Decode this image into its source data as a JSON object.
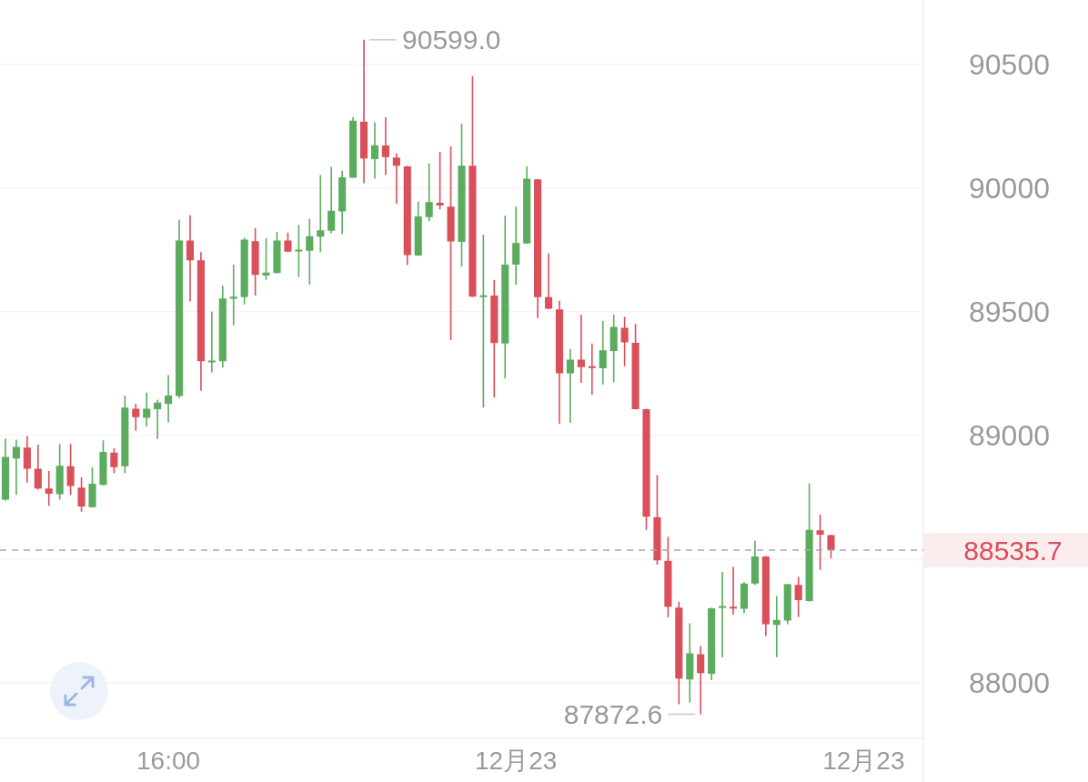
{
  "chart_data": {
    "type": "candlestick",
    "categories": [
      null,
      null,
      null,
      null,
      null,
      null,
      null,
      null,
      null,
      null,
      null,
      null,
      null,
      null,
      null,
      "16:00",
      null,
      null,
      null,
      null,
      null,
      null,
      null,
      null,
      null,
      null,
      null,
      null,
      null,
      null,
      null,
      null,
      null,
      null,
      null,
      null,
      null,
      null,
      null,
      null,
      null,
      null,
      null,
      null,
      null,
      null,
      null,
      "12月23",
      null,
      null,
      null,
      null,
      null,
      null,
      null,
      null,
      null,
      null,
      null,
      null,
      null,
      null,
      null,
      null,
      null,
      null,
      null,
      null,
      null,
      null,
      null,
      null,
      null,
      null,
      null,
      null,
      null,
      null,
      null,
      "12月23",
      null,
      null,
      null,
      null,
      null
    ],
    "ohlc": [
      [
        88740,
        88987,
        88735,
        88913
      ],
      [
        88906,
        88983,
        88759,
        88953
      ],
      [
        88950,
        88997,
        88809,
        88865
      ],
      [
        88865,
        88962,
        88780,
        88785
      ],
      [
        88785,
        88856,
        88715,
        88764
      ],
      [
        88762,
        88965,
        88740,
        88877
      ],
      [
        88875,
        88965,
        88759,
        88795
      ],
      [
        88789,
        88830,
        88691,
        88712
      ],
      [
        88710,
        88871,
        88708,
        88804
      ],
      [
        88800,
        88980,
        88797,
        88933
      ],
      [
        88930,
        88948,
        88847,
        88871
      ],
      [
        88875,
        89161,
        88847,
        89112
      ],
      [
        89108,
        89127,
        89018,
        89074
      ],
      [
        89071,
        89173,
        89036,
        89108
      ],
      [
        89106,
        89144,
        88985,
        89132
      ],
      [
        89127,
        89244,
        89053,
        89161
      ],
      [
        89159,
        89872,
        89151,
        89788
      ],
      [
        89788,
        89890,
        89541,
        89708
      ],
      [
        89708,
        89741,
        89180,
        89300
      ],
      [
        89298,
        89500,
        89255,
        89302
      ],
      [
        89300,
        89605,
        89274,
        89553
      ],
      [
        89552,
        89690,
        89445,
        89561
      ],
      [
        89559,
        89799,
        89529,
        89791
      ],
      [
        89785,
        89837,
        89565,
        89649
      ],
      [
        89646,
        89797,
        89629,
        89658
      ],
      [
        89656,
        89823,
        89654,
        89788
      ],
      [
        89788,
        89820,
        89741,
        89743
      ],
      [
        89747,
        89850,
        89641,
        89751
      ],
      [
        89746,
        89876,
        89609,
        89805
      ],
      [
        89803,
        90052,
        89741,
        89829
      ],
      [
        89827,
        90085,
        89817,
        89908
      ],
      [
        89905,
        90070,
        89814,
        90043
      ],
      [
        90041,
        90287,
        90040,
        90272
      ],
      [
        90268,
        90599.0,
        90019,
        90119
      ],
      [
        90117,
        90266,
        90038,
        90173
      ],
      [
        90172,
        90287,
        90052,
        90125
      ],
      [
        90123,
        90140,
        89937,
        90090
      ],
      [
        90087,
        90090,
        89688,
        89729
      ],
      [
        89727,
        89946,
        89725,
        89885
      ],
      [
        89882,
        90099,
        89866,
        89943
      ],
      [
        89940,
        90146,
        89914,
        89929
      ],
      [
        89925,
        90168,
        89385,
        89784
      ],
      [
        89782,
        90260,
        89682,
        90090
      ],
      [
        90090,
        90452,
        89559,
        89561
      ],
      [
        89562,
        89811,
        89112,
        89566
      ],
      [
        89565,
        89629,
        89153,
        89373
      ],
      [
        89371,
        89888,
        89230,
        89690
      ],
      [
        89690,
        89925,
        89608,
        89778
      ],
      [
        89776,
        90087,
        89775,
        90038
      ],
      [
        90035,
        90036,
        89474,
        89559
      ],
      [
        89559,
        89735,
        89510,
        89512
      ],
      [
        89509,
        89544,
        89047,
        89251
      ],
      [
        89251,
        89349,
        89051,
        89306
      ],
      [
        89306,
        89488,
        89212,
        89276
      ],
      [
        89279,
        89371,
        89165,
        89273
      ],
      [
        89271,
        89462,
        89206,
        89344
      ],
      [
        89341,
        89488,
        89215,
        89438
      ],
      [
        89435,
        89479,
        89279,
        89376
      ],
      [
        89374,
        89450,
        89105,
        89106
      ],
      [
        89106,
        89108,
        88618,
        88671
      ],
      [
        88669,
        88839,
        88477,
        88495
      ],
      [
        88493,
        88589,
        88264,
        88307
      ],
      [
        88303,
        88327,
        87913,
        88017
      ],
      [
        88013,
        88240,
        87919,
        88119
      ],
      [
        88115,
        88148,
        87872.6,
        88039
      ],
      [
        88036,
        88303,
        88010,
        88301
      ],
      [
        88306,
        88448,
        88103,
        88310
      ],
      [
        88307,
        88468,
        88275,
        88301
      ],
      [
        88299,
        88407,
        88281,
        88401
      ],
      [
        88401,
        88574,
        88395,
        88510
      ],
      [
        88510,
        88512,
        88189,
        88236
      ],
      [
        88234,
        88350,
        88103,
        88254
      ],
      [
        88251,
        88400,
        88236,
        88398
      ],
      [
        88395,
        88428,
        88266,
        88334
      ],
      [
        88330,
        88806,
        88328,
        88618
      ],
      [
        88616,
        88680,
        88456,
        88598
      ],
      [
        88597,
        88598,
        88503,
        88535.7
      ],
      null,
      null,
      null,
      null,
      null,
      null,
      null,
      null
    ],
    "colors": [
      "#5bac5f",
      "#5bac5f",
      "#d94f5a",
      "#d94f5a",
      "#d94f5a",
      "#5bac5f",
      "#d94f5a",
      "#d94f5a",
      "#5bac5f",
      "#5bac5f",
      "#d94f5a",
      "#5bac5f",
      "#d94f5a",
      "#5bac5f",
      "#5bac5f",
      "#5bac5f",
      "#5bac5f",
      "#d94f5a",
      "#d94f5a",
      "#5bac5f",
      "#5bac5f",
      "#5bac5f",
      "#5bac5f",
      "#d94f5a",
      "#5bac5f",
      "#5bac5f",
      "#d94f5a",
      "#5bac5f",
      "#5bac5f",
      "#5bac5f",
      "#5bac5f",
      "#5bac5f",
      "#5bac5f",
      "#d94f5a",
      "#5bac5f",
      "#d94f5a",
      "#d94f5a",
      "#d94f5a",
      "#5bac5f",
      "#5bac5f",
      "#d94f5a",
      "#d94f5a",
      "#5bac5f",
      "#d94f5a",
      "#5bac5f",
      "#d94f5a",
      "#5bac5f",
      "#5bac5f",
      "#5bac5f",
      "#d94f5a",
      "#d94f5a",
      "#d94f5a",
      "#5bac5f",
      "#d94f5a",
      "#d94f5a",
      "#5bac5f",
      "#5bac5f",
      "#d94f5a",
      "#d94f5a",
      "#d94f5a",
      "#d94f5a",
      "#d94f5a",
      "#d94f5a",
      "#5bac5f",
      "#d94f5a",
      "#5bac5f",
      "#5bac5f",
      "#d94f5a",
      "#5bac5f",
      "#5bac5f",
      "#d94f5a",
      "#5bac5f",
      "#5bac5f",
      "#d94f5a",
      "#5bac5f",
      "#d94f5a",
      "#d94f5a",
      null,
      null,
      null,
      null,
      null,
      null,
      null,
      null
    ],
    "ylim": [
      87775,
      90760
    ],
    "yticks": [
      88000,
      {
        "value": 88500,
        "label": null
      },
      89000,
      89500,
      90000,
      90500
    ],
    "grid": "y",
    "ref_lines": [
      {
        "axis": "y",
        "value": 88535.7,
        "label": "88535.7",
        "color": "#a8a8a8",
        "line_style": "dashed"
      }
    ],
    "annotations": [
      "90599.0",
      "87872.6"
    ]
  }
}
